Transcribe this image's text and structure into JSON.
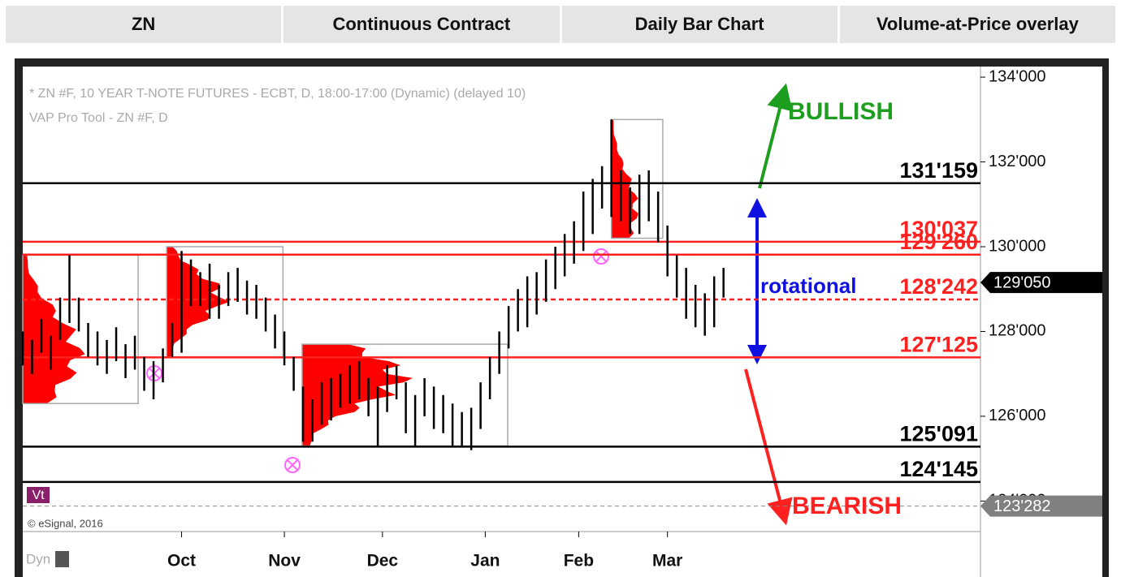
{
  "header": {
    "cells": [
      "ZN",
      "Continuous Contract",
      "Daily Bar Chart",
      "Volume-at-Price overlay"
    ]
  },
  "chart_data": {
    "type": "ohlc",
    "title": "* ZN #F, 10 YEAR T-NOTE FUTURES - ECBT, D, 18:00-17:00 (Dynamic) (delayed 10)",
    "subtitle": "VAP Pro Tool - ZN #F, D",
    "source": "© eSignal, 2016",
    "badge": "Vt",
    "footer_label": "Dyn",
    "color": "#000000",
    "x": [
      0,
      2,
      4,
      6,
      8,
      10,
      12,
      14,
      16,
      18,
      20,
      22,
      24,
      26,
      28,
      30,
      32,
      34,
      36,
      38,
      40,
      42,
      44,
      46,
      48,
      50,
      52,
      54,
      56,
      58,
      60,
      62,
      64,
      66,
      68,
      70,
      72,
      74,
      76,
      78,
      80,
      82,
      84,
      86,
      88,
      90,
      92,
      94,
      96,
      98,
      100,
      102,
      104,
      106,
      108,
      110,
      112,
      114,
      116,
      118,
      120,
      122,
      124,
      126,
      128,
      130,
      132,
      134,
      136,
      138,
      140,
      142,
      144,
      146,
      148,
      150
    ],
    "high": [
      128.0,
      127.8,
      128.3,
      127.9,
      128.8,
      129.8,
      128.8,
      128.2,
      128.0,
      127.8,
      128.1,
      127.7,
      127.9,
      127.4,
      127.3,
      127.6,
      128.2,
      129.9,
      129.7,
      129.4,
      129.6,
      129.1,
      129.4,
      129.5,
      129.2,
      129.1,
      128.8,
      128.4,
      128.0,
      127.4,
      126.7,
      126.4,
      126.8,
      126.9,
      127.0,
      127.2,
      127.3,
      126.9,
      126.7,
      127.2,
      127.2,
      126.8,
      126.5,
      126.9,
      126.7,
      126.5,
      126.3,
      126.1,
      126.2,
      126.8,
      127.4,
      128.0,
      128.6,
      129.0,
      129.3,
      129.4,
      129.7,
      130.0,
      130.3,
      130.6,
      131.3,
      131.6,
      131.9,
      133.0,
      131.8,
      131.4,
      131.7,
      131.8,
      131.3,
      130.5,
      129.8,
      129.5,
      129.1,
      128.9,
      129.3,
      129.5
    ],
    "low": [
      127.2,
      127.0,
      127.5,
      127.1,
      127.8,
      128.2,
      128.0,
      127.4,
      127.2,
      127.0,
      127.3,
      126.9,
      127.1,
      126.6,
      126.4,
      126.8,
      127.4,
      127.5,
      128.6,
      128.6,
      128.3,
      128.3,
      128.6,
      128.7,
      128.4,
      128.3,
      128.0,
      127.6,
      127.2,
      126.6,
      125.4,
      125.4,
      125.8,
      125.9,
      126.2,
      126.3,
      126.4,
      126.0,
      125.3,
      126.1,
      126.4,
      125.6,
      125.3,
      126.0,
      125.7,
      125.6,
      125.3,
      125.3,
      125.2,
      125.7,
      126.4,
      127.0,
      127.6,
      128.0,
      128.1,
      128.4,
      128.7,
      129.0,
      129.3,
      129.6,
      129.9,
      130.3,
      130.9,
      130.7,
      130.6,
      130.3,
      130.3,
      130.6,
      130.1,
      129.3,
      128.8,
      128.3,
      128.1,
      127.9,
      128.1,
      128.8
    ],
    "vap_zones": [
      {
        "x": [
          0,
          24.7
        ],
        "y": [
          126.3,
          129.8
        ],
        "poc": 127.5
      },
      {
        "x": [
          30.8,
          55.7
        ],
        "y": [
          127.4,
          130.0
        ],
        "poc": 128.8
      },
      {
        "x": [
          59.8,
          103.8
        ],
        "y": [
          125.3,
          127.7
        ],
        "poc": 126.9
      },
      {
        "x": [
          126,
          137
        ],
        "y": [
          130.2,
          133.0
        ],
        "poc": 130.9
      }
    ],
    "vap_color": "#ff0000",
    "levels": [
      {
        "value": 131.497,
        "label": "131'159",
        "color": "#000000",
        "dashed": false
      },
      {
        "value": 130.116,
        "label": "130'037",
        "color": "#ff2020",
        "dashed": false
      },
      {
        "value": 129.8125,
        "label": "129'260",
        "color": "#ff2020",
        "dashed": false
      },
      {
        "value": 128.756,
        "label": "128'242",
        "color": "#ff2020",
        "dashed": true
      },
      {
        "value": 127.39,
        "label": "127'125",
        "color": "#ff2020",
        "dashed": false
      },
      {
        "value": 125.284,
        "label": "125'091",
        "color": "#000000",
        "dashed": false
      },
      {
        "value": 124.45,
        "label": "124'145",
        "color": "#000000",
        "dashed": false
      }
    ],
    "price_tags": [
      {
        "value": 129.156,
        "label": "129'050",
        "color": "#000000"
      },
      {
        "value": 123.88,
        "label": "123'282",
        "color": "#808080"
      }
    ],
    "annotations": [
      {
        "text": "BULLISH",
        "color": "#1e9e1e"
      },
      {
        "text": "rotational",
        "color": "#1010e0"
      },
      {
        "text": "BEARISH",
        "color": "#ff2020"
      }
    ],
    "xlim": [
      0,
      205
    ],
    "xticks": [
      {
        "value": 34,
        "label": "Oct"
      },
      {
        "value": 56,
        "label": "Nov"
      },
      {
        "value": 77,
        "label": "Dec"
      },
      {
        "value": 99,
        "label": "Jan"
      },
      {
        "value": 119,
        "label": "Feb"
      },
      {
        "value": 138,
        "label": "Mar"
      }
    ],
    "ylim": [
      123.28,
      134.25
    ],
    "yticks": [
      {
        "value": 124,
        "label": "124'000"
      },
      {
        "value": 126,
        "label": "126'000"
      },
      {
        "value": 128,
        "label": "128'000"
      },
      {
        "value": 130,
        "label": "130'000"
      },
      {
        "value": 132,
        "label": "132'000"
      },
      {
        "value": 134,
        "label": "134'000"
      }
    ]
  }
}
